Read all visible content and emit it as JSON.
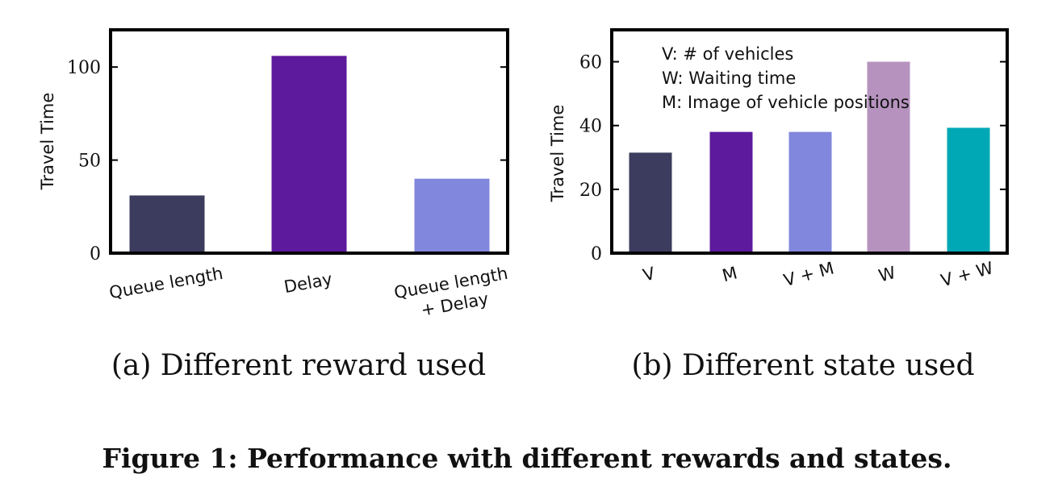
{
  "figure_caption": "Figure 1: Performance with different rewards and states.",
  "chart_data": [
    {
      "type": "bar",
      "subcaption": "(a) Different reward used",
      "ylabel": "Travel Time",
      "xlabel": "",
      "ylim": [
        0,
        120
      ],
      "yticks": [
        0,
        50,
        100
      ],
      "grid": false,
      "categories": [
        [
          "Queue length"
        ],
        [
          "Delay"
        ],
        [
          "Queue length",
          "+ Delay"
        ]
      ],
      "values": [
        31,
        106,
        40
      ],
      "colors": [
        "#3c3c5e",
        "#5d1a9c",
        "#8187dc"
      ]
    },
    {
      "type": "bar",
      "subcaption": "(b) Different state used",
      "ylabel": "Travel Time",
      "xlabel": "",
      "ylim": [
        0,
        70
      ],
      "yticks": [
        0,
        20,
        40,
        60
      ],
      "grid": false,
      "categories": [
        [
          "V"
        ],
        [
          "M"
        ],
        [
          "V + M"
        ],
        [
          "W"
        ],
        [
          "V + W"
        ]
      ],
      "values": [
        31.5,
        38,
        38,
        60,
        39.3
      ],
      "colors": [
        "#3c3c5e",
        "#5d1a9c",
        "#8187dc",
        "#b693bf",
        "#00a8b5"
      ],
      "annotations": [
        "V: # of vehicles",
        "W: Waiting time",
        "M: Image of vehicle positions"
      ]
    }
  ]
}
